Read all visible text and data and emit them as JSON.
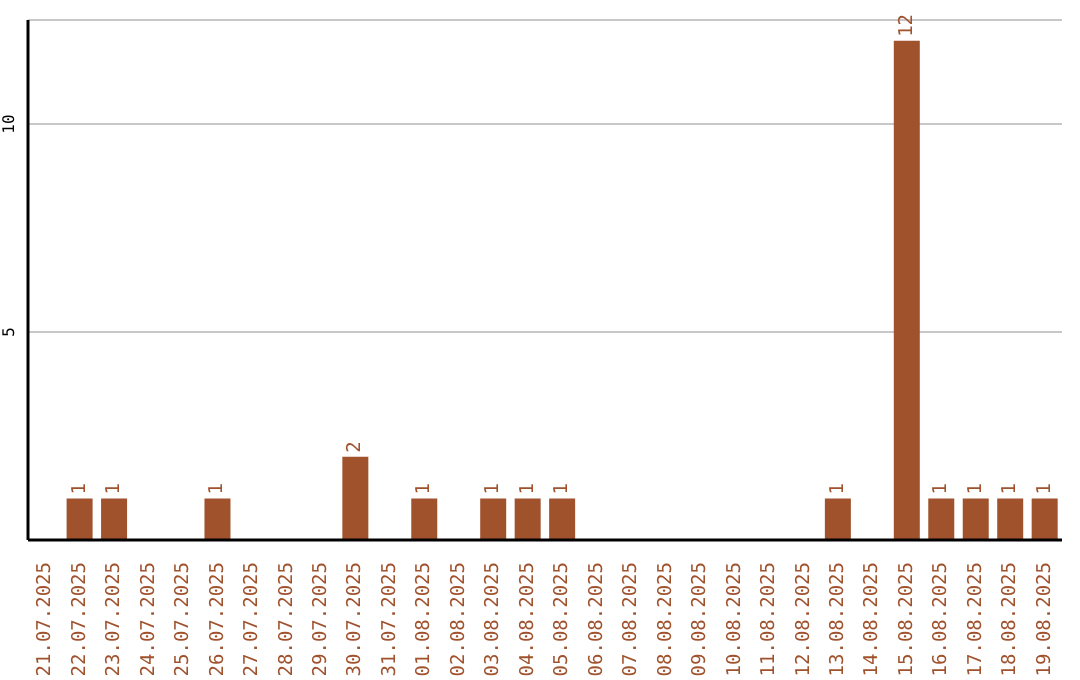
{
  "chart_data": {
    "type": "bar",
    "categories": [
      "21.07.2025",
      "22.07.2025",
      "23.07.2025",
      "24.07.2025",
      "25.07.2025",
      "26.07.2025",
      "27.07.2025",
      "28.07.2025",
      "29.07.2025",
      "30.07.2025",
      "31.07.2025",
      "01.08.2025",
      "02.08.2025",
      "03.08.2025",
      "04.08.2025",
      "05.08.2025",
      "06.08.2025",
      "07.08.2025",
      "08.08.2025",
      "09.08.2025",
      "10.08.2025",
      "11.08.2025",
      "12.08.2025",
      "13.08.2025",
      "14.08.2025",
      "15.08.2025",
      "16.08.2025",
      "17.08.2025",
      "18.08.2025",
      "19.08.2025"
    ],
    "values": [
      0,
      1,
      1,
      0,
      0,
      1,
      0,
      0,
      0,
      2,
      0,
      1,
      0,
      1,
      1,
      1,
      0,
      0,
      0,
      0,
      0,
      0,
      0,
      1,
      0,
      12,
      1,
      1,
      1,
      1
    ],
    "value_labels": [
      null,
      "1",
      "1",
      null,
      null,
      "1",
      null,
      null,
      null,
      "2",
      null,
      "1",
      null,
      "1",
      "1",
      "1",
      null,
      null,
      null,
      null,
      null,
      null,
      null,
      "1",
      null,
      "12",
      "1",
      "1",
      "1",
      "1"
    ],
    "color": "#a0522d",
    "ylim": [
      0,
      12.5
    ],
    "yticks": [
      5,
      10
    ],
    "grid": "y"
  }
}
